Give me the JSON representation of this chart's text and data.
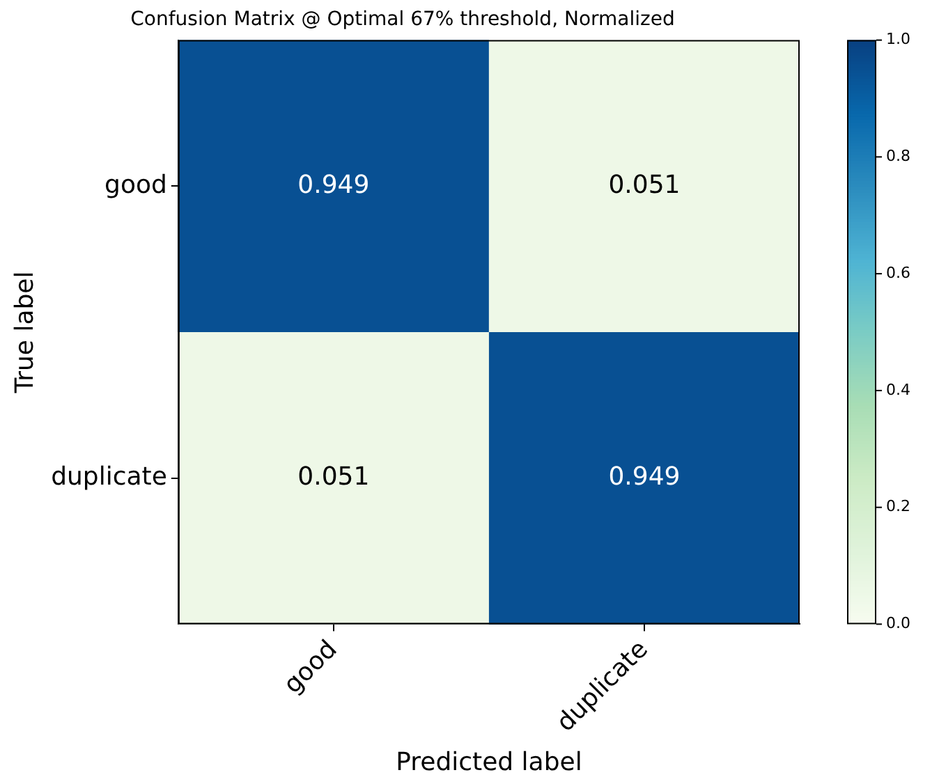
{
  "chart_data": {
    "type": "heatmap",
    "title": "Confusion Matrix @ Optimal 67% threshold, Normalized",
    "xlabel": "Predicted label",
    "ylabel": "True label",
    "categories": [
      "good",
      "duplicate"
    ],
    "y_categories": [
      "good",
      "duplicate"
    ],
    "cells": [
      [
        0.949,
        0.051
      ],
      [
        0.051,
        0.949
      ]
    ],
    "data_labels": true,
    "clim": [
      0,
      1
    ],
    "cticks": [
      {
        "value": 0,
        "label": "0.0"
      },
      {
        "value": 0.2,
        "label": "0.2"
      },
      {
        "value": 0.4,
        "label": "0.4"
      },
      {
        "value": 0.6,
        "label": "0.6"
      },
      {
        "value": 0.8,
        "label": "0.8"
      },
      {
        "value": 1,
        "label": "1.0"
      }
    ]
  }
}
